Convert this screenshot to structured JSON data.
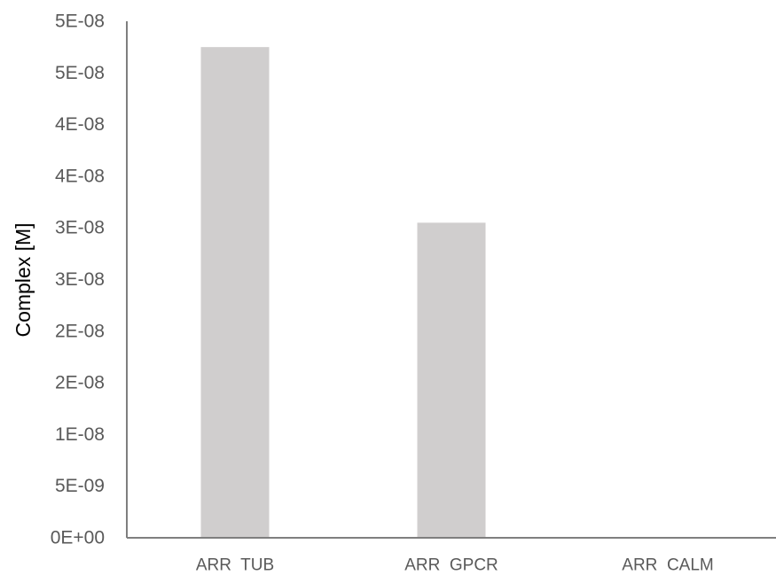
{
  "chart_data": {
    "type": "bar",
    "title": "",
    "xlabel": "",
    "ylabel": "Complex [M]",
    "categories": [
      "ARR  TUB",
      "ARR  GPCR",
      "ARR  CALM"
    ],
    "values": [
      4.75e-08,
      3.05e-08,
      0
    ],
    "ylim": [
      0,
      5e-08
    ],
    "y_ticks": [
      0,
      5e-09,
      1e-08,
      1.5e-08,
      2e-08,
      2.5e-08,
      3e-08,
      3.5e-08,
      4e-08,
      4.5e-08,
      5e-08
    ],
    "y_tick_labels": [
      "0E+00",
      "5E-09",
      "1E-08",
      "2E-08",
      "2E-08",
      "3E-08",
      "3E-08",
      "4E-08",
      "4E-08",
      "5E-08",
      "5E-08"
    ],
    "grid": false,
    "legend": "none",
    "colors": {
      "bar": "#d0cece",
      "axis": "#7f7f7f",
      "tick_text": "#595959",
      "axis_title": "#000000"
    }
  }
}
